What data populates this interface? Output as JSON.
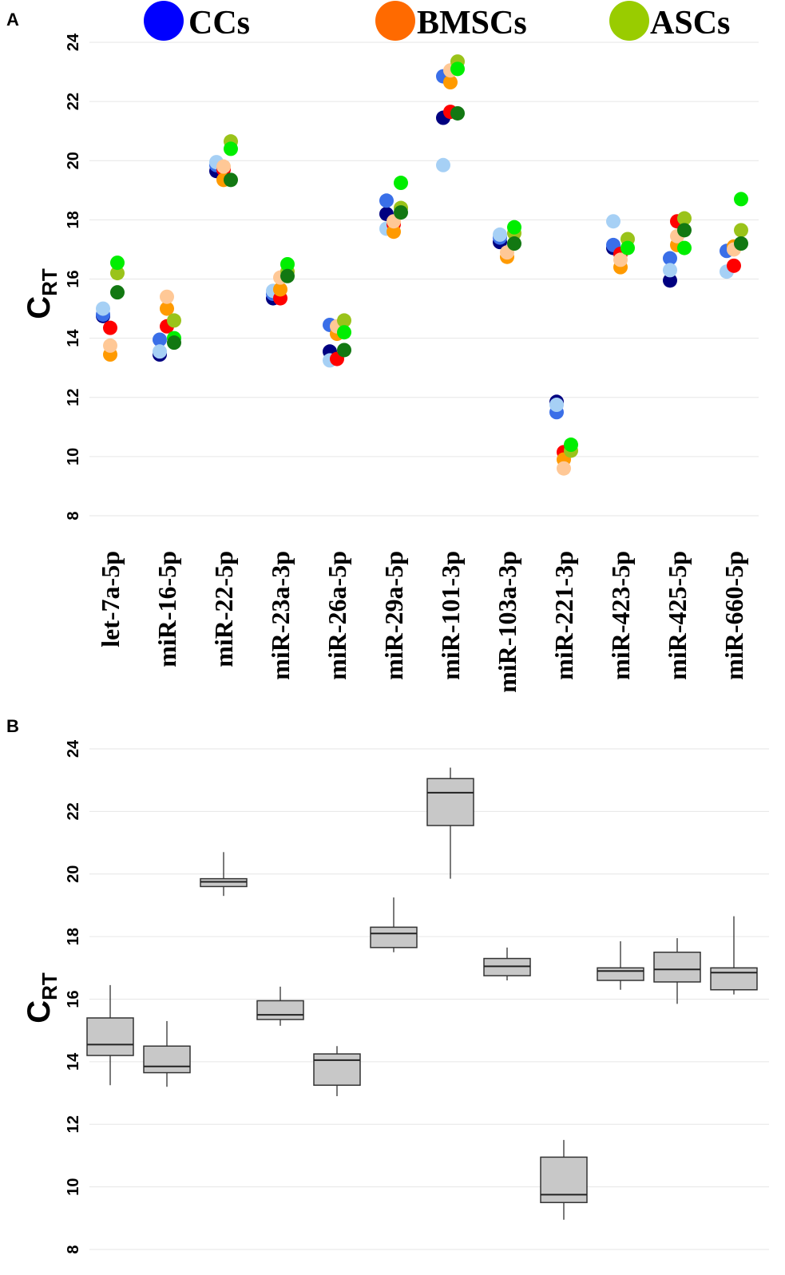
{
  "panels": {
    "a": "A",
    "b": "B"
  },
  "legend": [
    {
      "label": "CCs",
      "color": "#0000ff"
    },
    {
      "label": "BMSCs",
      "color": "#ff6a00"
    },
    {
      "label": "ASCs",
      "color": "#99cc00"
    }
  ],
  "chart_data": [
    {
      "type": "scatter",
      "panel": "A",
      "ylabel": "C",
      "ylabel_sub": "RT",
      "ylim": [
        8,
        24
      ],
      "yticks": [
        8,
        10,
        12,
        14,
        16,
        18,
        20,
        22,
        24
      ],
      "categories": [
        "let-7a-5p",
        "miR-16-5p",
        "miR-22-5p",
        "miR-23a-3p",
        "miR-26a-5p",
        "miR-29a-5p",
        "miR-101-3p",
        "miR-103a-3p",
        "miR-221-3p",
        "miR-423-5p",
        "miR-425-5p",
        "miR-660-5p"
      ],
      "series": [
        {
          "name": "CCs-1",
          "group": "CCs",
          "color": "#000080",
          "values": [
            14.75,
            13.45,
            19.65,
            15.35,
            13.55,
            18.2,
            21.45,
            17.25,
            11.85,
            17.05,
            15.95,
            null
          ]
        },
        {
          "name": "CCs-2",
          "group": "CCs",
          "color": "#3a6fe8",
          "values": [
            14.8,
            13.95,
            19.85,
            15.5,
            14.45,
            18.65,
            22.85,
            17.4,
            11.5,
            17.15,
            16.7,
            16.95
          ]
        },
        {
          "name": "CCs-3",
          "group": "CCs",
          "color": "#a6d0f5",
          "values": [
            15.0,
            13.55,
            19.95,
            15.6,
            13.25,
            17.7,
            19.85,
            17.5,
            11.75,
            17.95,
            16.3,
            16.25
          ]
        },
        {
          "name": "BMSCs-1",
          "group": "BMSCs",
          "color": "#ff0000",
          "values": [
            14.35,
            14.4,
            19.7,
            15.35,
            13.3,
            17.85,
            21.65,
            null,
            10.15,
            16.85,
            17.95,
            16.45
          ]
        },
        {
          "name": "BMSCs-2",
          "group": "BMSCs",
          "color": "#ff9a00",
          "values": [
            13.45,
            15.0,
            19.35,
            15.65,
            14.15,
            17.6,
            22.65,
            16.75,
            9.9,
            16.4,
            17.15,
            17.1
          ]
        },
        {
          "name": "BMSCs-3",
          "group": "BMSCs",
          "color": "#ffc896",
          "values": [
            13.75,
            15.4,
            19.8,
            16.05,
            14.4,
            17.95,
            23.05,
            16.9,
            9.6,
            16.65,
            17.45,
            17.0
          ]
        },
        {
          "name": "ASCs-1",
          "group": "ASCs",
          "color": "#9ac31a",
          "values": [
            16.2,
            14.6,
            20.65,
            16.25,
            14.6,
            18.4,
            23.35,
            17.55,
            10.2,
            17.35,
            18.05,
            17.65
          ]
        },
        {
          "name": "ASCs-2",
          "group": "ASCs",
          "color": "#00ee00",
          "values": [
            16.55,
            14.0,
            20.4,
            16.5,
            14.2,
            19.25,
            23.1,
            17.75,
            10.4,
            17.05,
            17.05,
            18.7
          ]
        },
        {
          "name": "ASCs-3",
          "group": "ASCs",
          "color": "#127812",
          "values": [
            15.55,
            13.85,
            19.35,
            16.1,
            13.6,
            18.25,
            21.6,
            17.2,
            null,
            null,
            17.65,
            17.2
          ]
        }
      ]
    },
    {
      "type": "box",
      "panel": "B",
      "ylabel": "C",
      "ylabel_sub": "RT",
      "ylim": [
        8,
        24
      ],
      "yticks": [
        8,
        10,
        12,
        14,
        16,
        18,
        20,
        22,
        24
      ],
      "categories": [
        "let-7a-5p",
        "miR-16-5p",
        "miR-22-5p",
        "miR-23a-3p",
        "miR-26a-5p",
        "miR-29a-5p",
        "miR-101-3p",
        "miR-103a-3p",
        "miR-221-3p",
        "miR-423-5p",
        "miR-425-5p",
        "miR-660-5p"
      ],
      "boxes": [
        {
          "min": 13.25,
          "q1": 14.2,
          "median": 14.55,
          "q3": 15.4,
          "max": 16.45
        },
        {
          "min": 13.2,
          "q1": 13.65,
          "median": 13.85,
          "q3": 14.5,
          "max": 15.3
        },
        {
          "min": 19.3,
          "q1": 19.6,
          "median": 19.75,
          "q3": 19.85,
          "max": 20.7
        },
        {
          "min": 15.15,
          "q1": 15.35,
          "median": 15.5,
          "q3": 15.95,
          "max": 16.4
        },
        {
          "min": 12.9,
          "q1": 13.25,
          "median": 14.05,
          "q3": 14.25,
          "max": 14.5
        },
        {
          "min": 17.5,
          "q1": 17.65,
          "median": 18.1,
          "q3": 18.3,
          "max": 19.25
        },
        {
          "min": 19.85,
          "q1": 21.55,
          "median": 22.6,
          "q3": 23.05,
          "max": 23.4
        },
        {
          "min": 16.6,
          "q1": 16.75,
          "median": 17.05,
          "q3": 17.3,
          "max": 17.65
        },
        {
          "min": 8.95,
          "q1": 9.5,
          "median": 9.75,
          "q3": 10.95,
          "max": 11.5
        },
        {
          "min": 16.3,
          "q1": 16.6,
          "median": 16.9,
          "q3": 17.0,
          "max": 17.85
        },
        {
          "min": 15.85,
          "q1": 16.55,
          "median": 16.95,
          "q3": 17.5,
          "max": 17.95
        },
        {
          "min": 16.15,
          "q1": 16.3,
          "median": 16.85,
          "q3": 17.0,
          "max": 18.65
        }
      ]
    }
  ]
}
